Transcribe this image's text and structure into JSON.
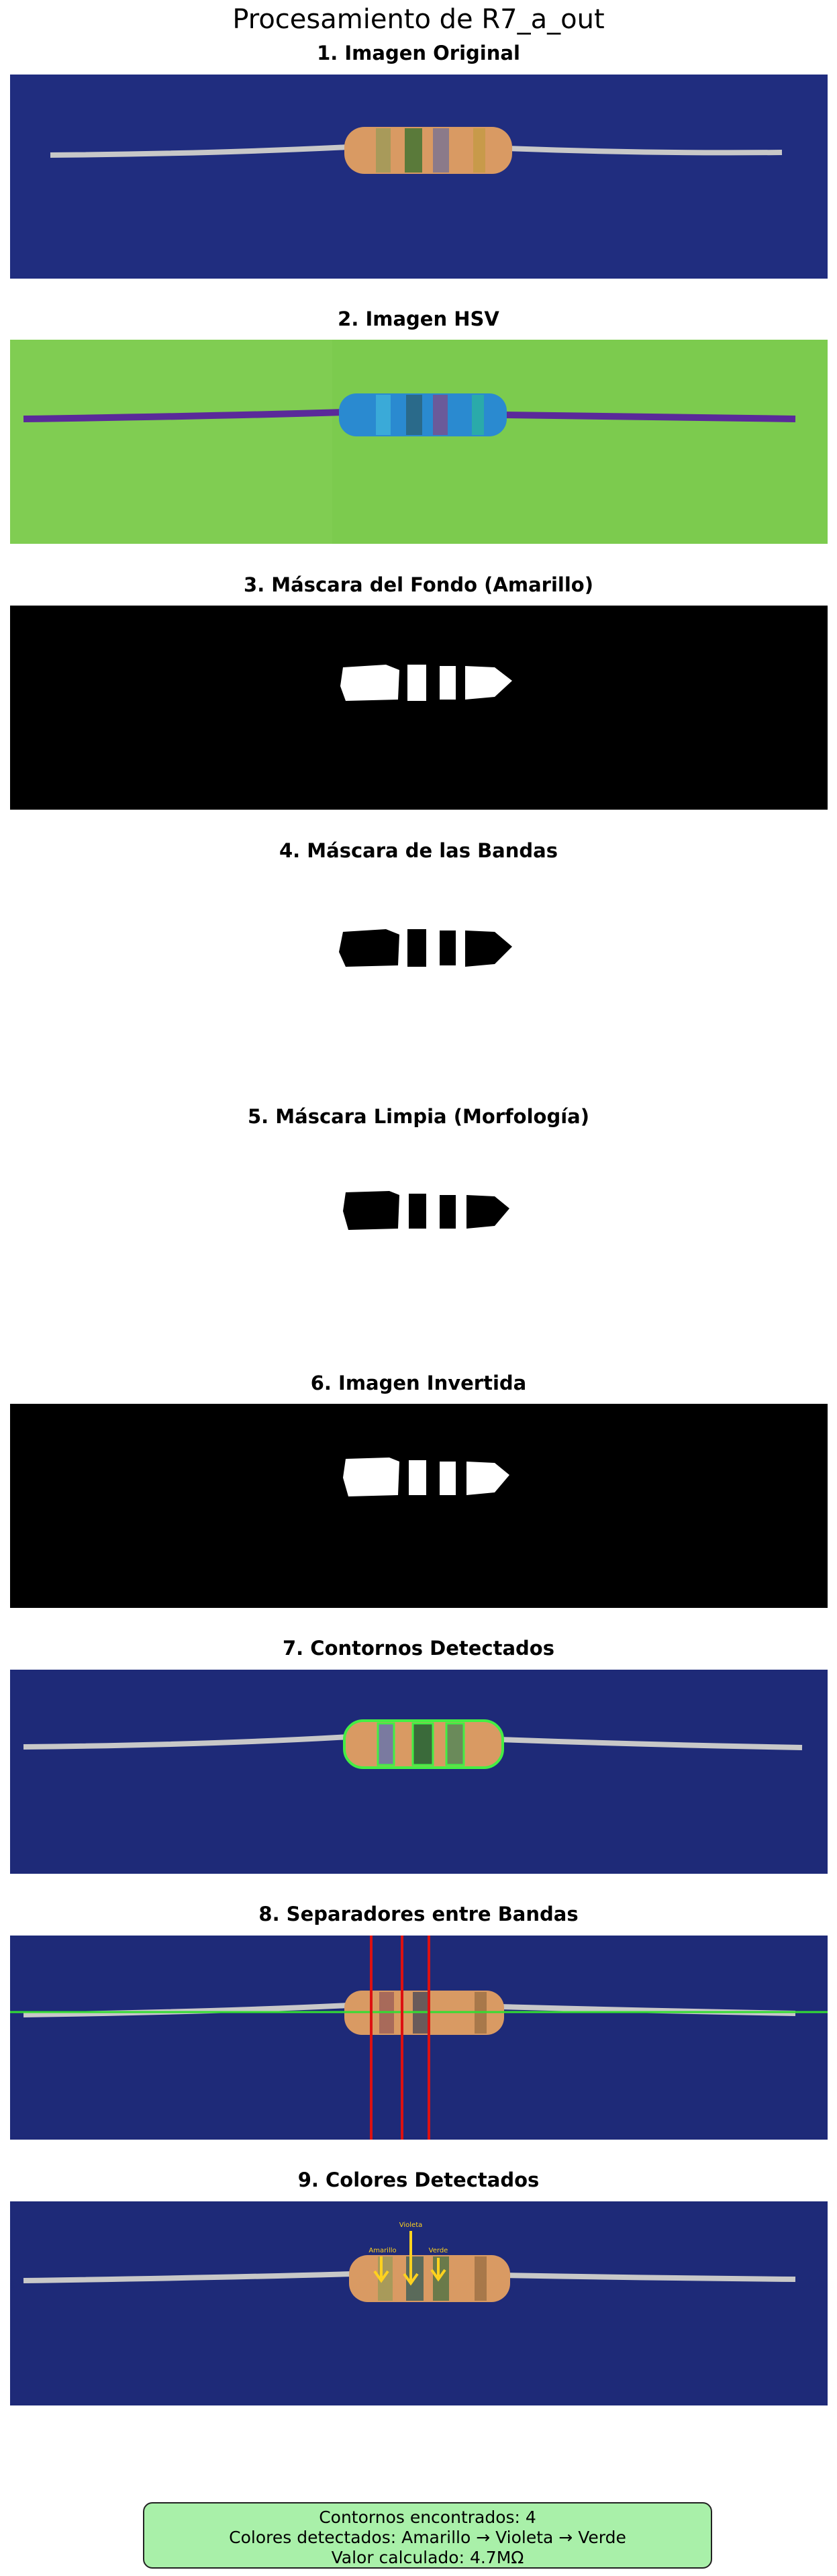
{
  "figure": {
    "title": "Procesamiento de R7_a_out"
  },
  "panels": [
    {
      "title": "1. Imagen Original"
    },
    {
      "title": "2. Imagen HSV"
    },
    {
      "title": "3. Máscara del Fondo (Amarillo)"
    },
    {
      "title": "4. Máscara de las Bandas"
    },
    {
      "title": "5. Máscara Limpia (Morfología)"
    },
    {
      "title": "6. Imagen Invertida"
    },
    {
      "title": "7. Contornos Detectados"
    },
    {
      "title": "8. Separadores entre Bandas"
    },
    {
      "title": "9. Colores Detectados"
    }
  ],
  "detected_labels": {
    "first": "Amarillo",
    "second": "Violeta",
    "third": "Verde"
  },
  "summary": {
    "contours": "Contornos encontrados: 4",
    "colors": "Colores detectados: Amarillo → Violeta → Verde",
    "value": "Valor calculado: 4.7MΩ"
  },
  "colors": {
    "background_blue": "#1e2a78",
    "hsv_green": "#7ccb4e",
    "body_tan": "#d99a63",
    "summary_box": "#a9f0a9",
    "contour_green": "#44ee44",
    "separator_red": "#dd1111"
  }
}
